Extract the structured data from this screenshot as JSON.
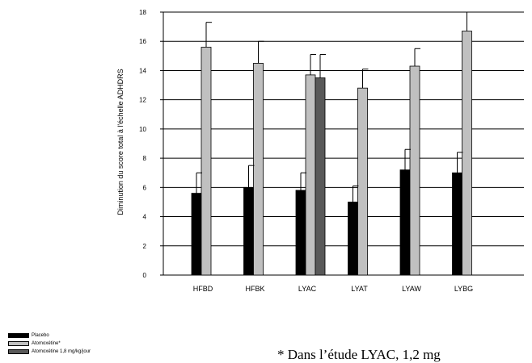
{
  "chart_data": {
    "type": "bar",
    "title": "",
    "xlabel": "",
    "ylabel": "Diminution du score total à l'échelle ADHDRS",
    "ylim": [
      0,
      18
    ],
    "yticks": [
      0,
      2,
      4,
      6,
      8,
      10,
      12,
      14,
      16,
      18
    ],
    "grid": true,
    "error_bars": true,
    "legend_position": "bottom-left",
    "categories": [
      "HFBD",
      "HFBK",
      "LYAC",
      "LYAT",
      "LYAW",
      "LYBG"
    ],
    "series": [
      {
        "name": "Placebo",
        "color": "#000000",
        "values": [
          5.6,
          6.0,
          5.8,
          5.0,
          7.2,
          7.0
        ],
        "errors": [
          1.4,
          1.5,
          1.2,
          1.1,
          1.4,
          1.4
        ]
      },
      {
        "name": "Atomoxétine*",
        "color": "#c0c0c0",
        "values": [
          15.6,
          14.5,
          13.7,
          12.8,
          14.3,
          16.7
        ],
        "errors": [
          1.7,
          1.5,
          1.4,
          1.3,
          1.2,
          1.3
        ]
      },
      {
        "name": "Atomoxétine 1,8 mg/kg/jour",
        "color": "#595959",
        "values": [
          null,
          null,
          13.5,
          null,
          null,
          null
        ],
        "errors": [
          null,
          null,
          1.6,
          null,
          null,
          null
        ]
      }
    ]
  },
  "footnote": "* Dans l’étude LYAC, 1,2 mg"
}
